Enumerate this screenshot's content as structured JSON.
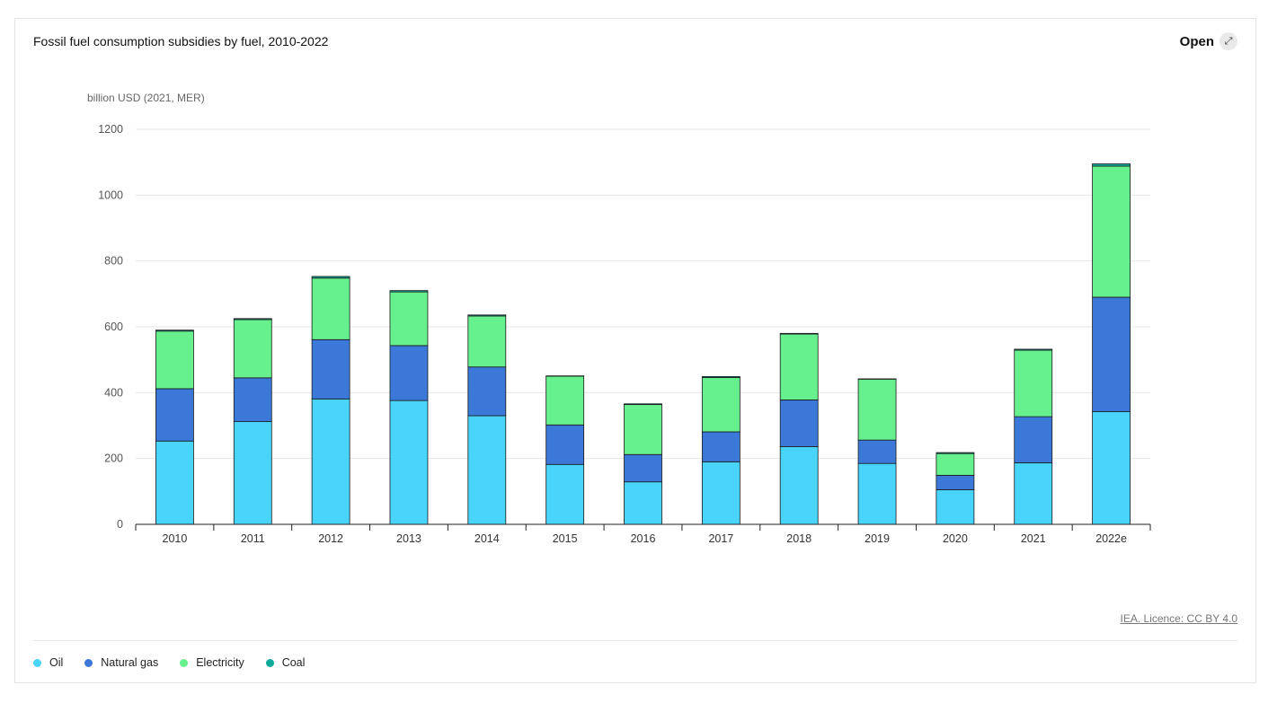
{
  "header": {
    "title": "Fossil fuel consumption subsidies by fuel, 2010-2022",
    "open_label": "Open",
    "open_icon": "expand-arrow-icon"
  },
  "footer": {
    "licence": "IEA. Licence: CC BY 4.0"
  },
  "chart_data": {
    "type": "bar",
    "stacked": true,
    "title": "Fossil fuel consumption subsidies by fuel, 2010-2022",
    "ylabel": "billion USD (2021, MER)",
    "xlabel": "",
    "ylim": [
      0,
      1200
    ],
    "yticks": [
      0,
      200,
      400,
      600,
      800,
      1000,
      1200
    ],
    "grid": true,
    "legend_position": "bottom-left",
    "categories": [
      "2010",
      "2011",
      "2012",
      "2013",
      "2014",
      "2015",
      "2016",
      "2017",
      "2018",
      "2019",
      "2020",
      "2021",
      "2022e"
    ],
    "series": [
      {
        "name": "Oil",
        "color": "#48d4fb",
        "values": [
          253,
          312,
          381,
          376,
          330,
          182,
          129,
          190,
          236,
          185,
          105,
          187,
          342
        ]
      },
      {
        "name": "Natural gas",
        "color": "#3c78d8",
        "values": [
          159,
          133,
          180,
          167,
          148,
          120,
          83,
          91,
          142,
          71,
          44,
          140,
          348
        ]
      },
      {
        "name": "Electricity",
        "color": "#66f08e",
        "values": [
          175,
          177,
          187,
          163,
          155,
          148,
          152,
          165,
          200,
          185,
          66,
          202,
          398
        ]
      },
      {
        "name": "Coal",
        "color": "#10a99a",
        "values": [
          3,
          3,
          5,
          4,
          3,
          1,
          2,
          3,
          2,
          1,
          3,
          3,
          7
        ]
      }
    ]
  }
}
